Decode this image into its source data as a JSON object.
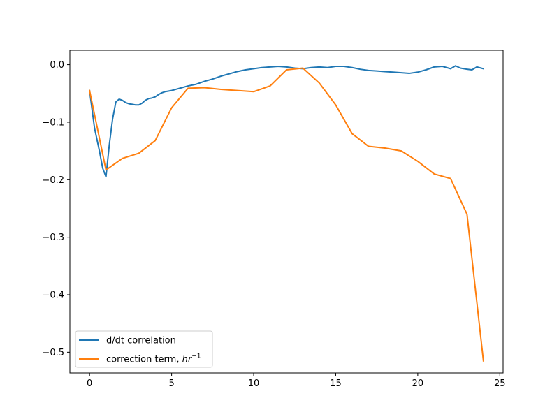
{
  "chart_data": {
    "type": "line",
    "title": "",
    "xlabel": "",
    "ylabel": "",
    "xlim": [
      -1.2,
      25.2
    ],
    "ylim": [
      -0.536,
      0.025
    ],
    "grid": false,
    "legend_placement": "lower-left",
    "xticks": [
      0,
      5,
      10,
      15,
      20,
      25
    ],
    "xtick_labels": [
      "0",
      "5",
      "10",
      "15",
      "20",
      "25"
    ],
    "yticks": [
      0.0,
      -0.1,
      -0.2,
      -0.3,
      -0.4,
      -0.5
    ],
    "ytick_labels": [
      "0.0",
      "−0.1",
      "−0.2",
      "−0.3",
      "−0.4",
      "−0.5"
    ],
    "series": [
      {
        "name": "d/dt correlation",
        "color": "#1f77b4",
        "x": [
          0,
          0.3,
          0.6,
          0.8,
          1.0,
          1.2,
          1.4,
          1.6,
          1.8,
          2.0,
          2.2,
          2.4,
          2.6,
          2.8,
          3.0,
          3.2,
          3.4,
          3.6,
          3.8,
          4.0,
          4.2,
          4.4,
          4.6,
          4.8,
          5.0,
          5.5,
          6.0,
          6.5,
          7.0,
          7.5,
          8.0,
          8.5,
          9.0,
          9.5,
          10.0,
          10.5,
          11.0,
          11.5,
          12.0,
          12.5,
          13.0,
          13.5,
          14.0,
          14.5,
          15.0,
          15.5,
          16.0,
          16.5,
          17.0,
          17.5,
          18.0,
          18.5,
          19.0,
          19.5,
          20.0,
          20.5,
          21.0,
          21.5,
          22.0,
          22.3,
          22.6,
          23.0,
          23.3,
          23.6,
          24.0
        ],
        "y": [
          -0.045,
          -0.11,
          -0.15,
          -0.18,
          -0.195,
          -0.14,
          -0.095,
          -0.065,
          -0.06,
          -0.062,
          -0.066,
          -0.068,
          -0.069,
          -0.07,
          -0.07,
          -0.067,
          -0.062,
          -0.059,
          -0.058,
          -0.056,
          -0.052,
          -0.049,
          -0.047,
          -0.046,
          -0.045,
          -0.041,
          -0.037,
          -0.034,
          -0.029,
          -0.025,
          -0.02,
          -0.016,
          -0.012,
          -0.009,
          -0.007,
          -0.005,
          -0.004,
          -0.003,
          -0.004,
          -0.006,
          -0.007,
          -0.005,
          -0.004,
          -0.005,
          -0.003,
          -0.003,
          -0.005,
          -0.008,
          -0.01,
          -0.011,
          -0.012,
          -0.013,
          -0.014,
          -0.015,
          -0.013,
          -0.009,
          -0.004,
          -0.003,
          -0.007,
          -0.002,
          -0.006,
          -0.008,
          -0.009,
          -0.004,
          -0.007
        ]
      },
      {
        "name": "correction term, hr⁻¹",
        "color": "#ff7f0e",
        "x": [
          0,
          1,
          2,
          3,
          4,
          5,
          6,
          7,
          8,
          9,
          10,
          11,
          12,
          13,
          14,
          15,
          16,
          17,
          18,
          19,
          20,
          21,
          22,
          23,
          24
        ],
        "y": [
          -0.045,
          -0.183,
          -0.163,
          -0.154,
          -0.132,
          -0.075,
          -0.041,
          -0.04,
          -0.043,
          -0.045,
          -0.047,
          -0.037,
          -0.009,
          -0.006,
          -0.032,
          -0.07,
          -0.12,
          -0.142,
          -0.145,
          -0.15,
          -0.168,
          -0.19,
          -0.198,
          -0.26,
          -0.515
        ]
      }
    ],
    "legend": [
      {
        "text": "d/dt correlation"
      },
      {
        "text": "correction term, ",
        "math_base": "hr",
        "math_sup": "−1"
      }
    ]
  }
}
